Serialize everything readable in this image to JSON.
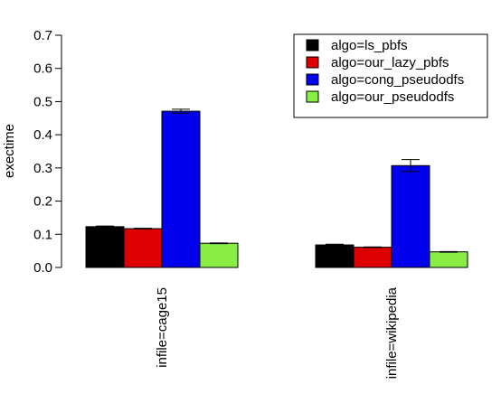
{
  "chart_data": {
    "type": "bar",
    "title": "",
    "xlabel": "",
    "ylabel": "exectime",
    "ylim": [
      0,
      0.7
    ],
    "yticks": [
      "0.0",
      "0.1",
      "0.2",
      "0.3",
      "0.4",
      "0.5",
      "0.6",
      "0.7"
    ],
    "categories": [
      "infile=cage15",
      "infile=wikipedia"
    ],
    "legend_position": "top-right",
    "grid": false,
    "error_bars": true,
    "series": [
      {
        "name": "algo=ls_pbfs",
        "color": "#000000",
        "values": [
          0.123,
          0.068
        ],
        "errors": [
          0.002,
          0.002
        ]
      },
      {
        "name": "algo=our_lazy_pbfs",
        "color": "#dd0000",
        "values": [
          0.117,
          0.061
        ],
        "errors": [
          0.001,
          0.001
        ]
      },
      {
        "name": "algo=cong_pseudodfs",
        "color": "#0000ee",
        "values": [
          0.471,
          0.307
        ],
        "errors": [
          0.006,
          0.018
        ]
      },
      {
        "name": "algo=our_pseudodfs",
        "color": "#88ee44",
        "values": [
          0.073,
          0.047
        ],
        "errors": [
          0.001,
          0.001
        ]
      }
    ]
  }
}
